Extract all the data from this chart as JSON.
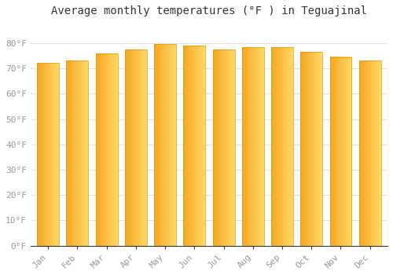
{
  "title": "Average monthly temperatures (°F ) in Teguajinal",
  "months": [
    "Jan",
    "Feb",
    "Mar",
    "Apr",
    "May",
    "Jun",
    "Jul",
    "Aug",
    "Sep",
    "Oct",
    "Nov",
    "Dec"
  ],
  "values": [
    72.3,
    73.2,
    75.9,
    77.5,
    79.5,
    79.0,
    77.5,
    78.3,
    78.3,
    76.5,
    74.5,
    73.2
  ],
  "bar_color_left": "#F5A623",
  "bar_color_right": "#FFD966",
  "bar_edge_color": "#E8960A",
  "ylim": [
    0,
    88
  ],
  "yticks": [
    0,
    10,
    20,
    30,
    40,
    50,
    60,
    70,
    80
  ],
  "ytick_labels": [
    "0°F",
    "10°F",
    "20°F",
    "30°F",
    "40°F",
    "50°F",
    "60°F",
    "70°F",
    "80°F"
  ],
  "background_color": "#FFFFFF",
  "plot_bg_color": "#FFFFFF",
  "grid_color": "#E0E0E0",
  "title_fontsize": 10,
  "tick_fontsize": 8,
  "tick_color": "#999999",
  "spine_color": "#333333",
  "bar_width": 0.75
}
